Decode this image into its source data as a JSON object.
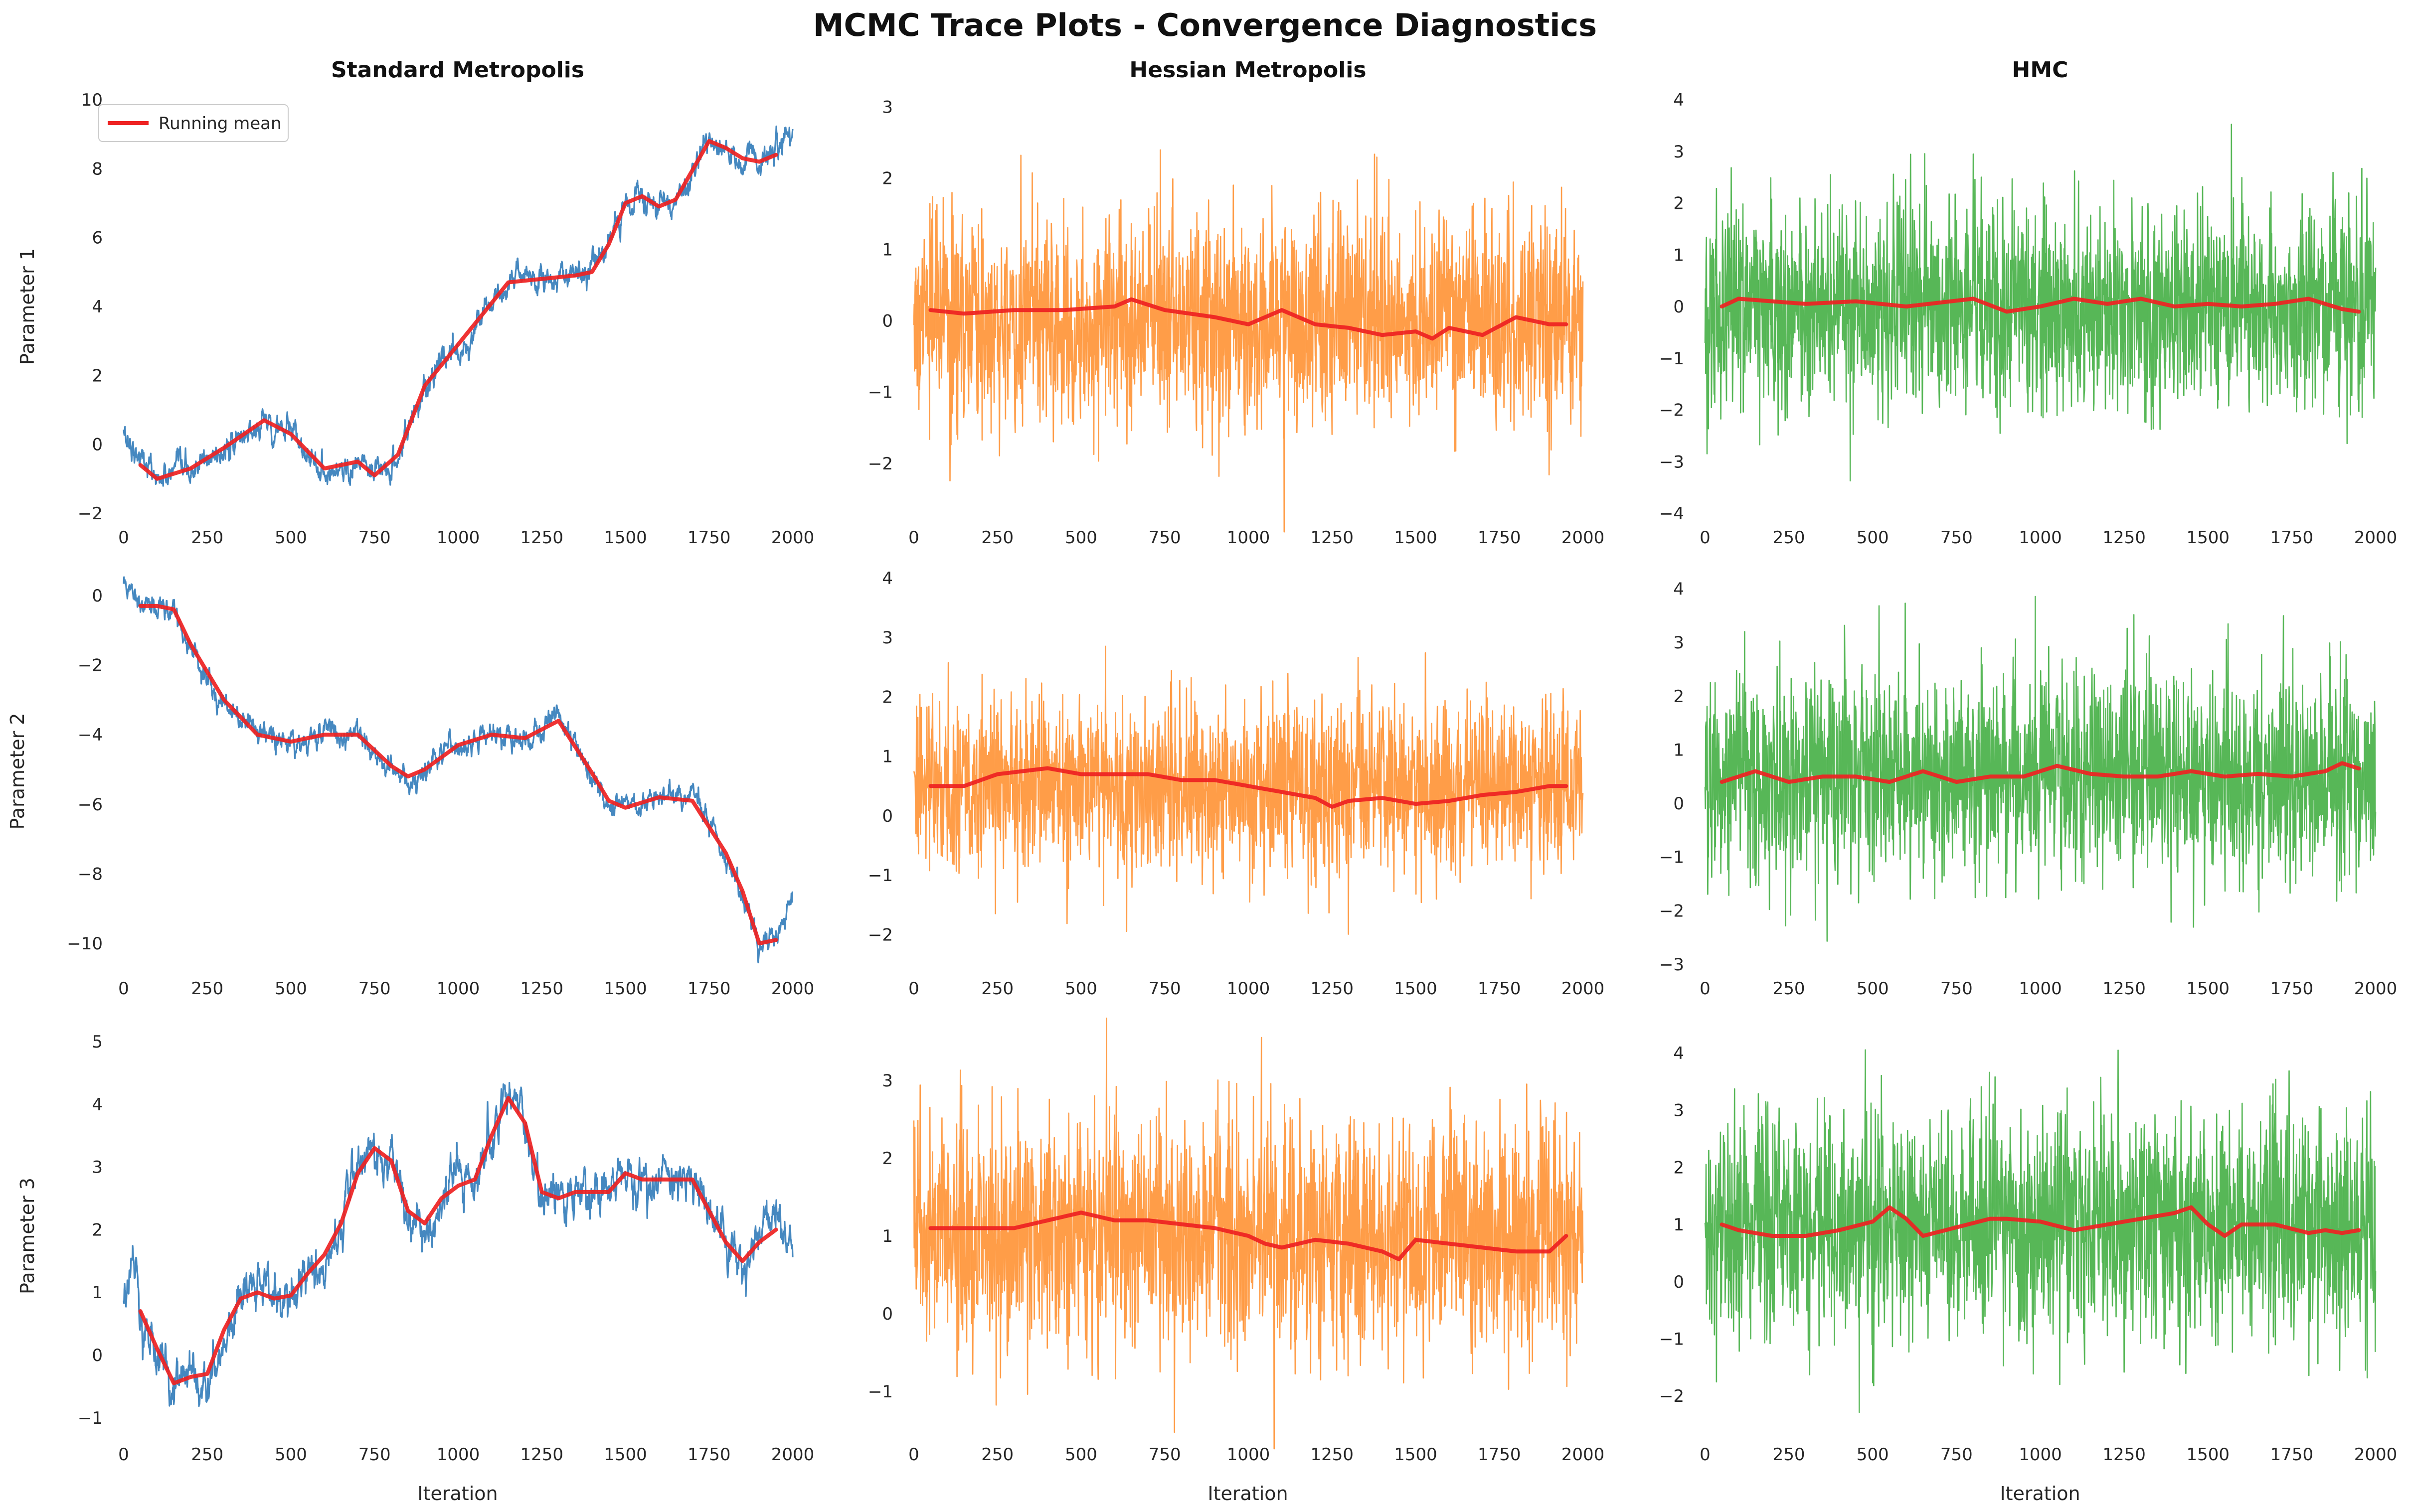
{
  "title": "MCMC Trace Plots - Convergence Diagnostics",
  "column_titles": [
    "Standard Metropolis",
    "Hessian Metropolis",
    "HMC"
  ],
  "row_labels": [
    "Parameter 1",
    "Parameter 2",
    "Parameter 3"
  ],
  "xlabel": "Iteration",
  "legend_label": "Running mean",
  "colors": {
    "standard": "#3b82bd",
    "hessian": "#ff8c28",
    "hmc": "#3aaa3a",
    "running_mean": "#ee2222",
    "text": "#262626"
  },
  "chart_data": [
    {
      "type": "line",
      "row": 1,
      "col": 1,
      "method": "Standard Metropolis",
      "ylabel": "Parameter 1",
      "xlim": [
        0,
        2000
      ],
      "ylim": [
        -2,
        10
      ],
      "xticks": [
        0,
        250,
        500,
        750,
        1000,
        1250,
        1500,
        1750,
        2000
      ],
      "yticks": [
        -2,
        0,
        2,
        4,
        6,
        8,
        10
      ],
      "legend": "top-left",
      "trace": {
        "kind": "walk",
        "noise": 0.22,
        "x": [
          0,
          100,
          200,
          300,
          420,
          500,
          600,
          700,
          750,
          820,
          900,
          1000,
          1100,
          1150,
          1250,
          1350,
          1400,
          1450,
          1500,
          1550,
          1600,
          1650,
          1750,
          1800,
          1850,
          1900,
          1950,
          2000
        ],
        "y": [
          0.3,
          -1.0,
          -0.8,
          -0.2,
          0.7,
          0.3,
          -0.8,
          -0.5,
          -1.0,
          -0.4,
          1.8,
          2.8,
          4.0,
          4.7,
          4.8,
          4.9,
          5.0,
          5.8,
          7.0,
          7.2,
          6.8,
          7.0,
          8.8,
          8.5,
          8.2,
          8.2,
          8.6,
          9.2
        ]
      },
      "running_mean": {
        "x": [
          50,
          100,
          200,
          300,
          420,
          500,
          600,
          700,
          750,
          820,
          900,
          1000,
          1100,
          1150,
          1250,
          1350,
          1400,
          1450,
          1500,
          1550,
          1600,
          1650,
          1750,
          1800,
          1850,
          1900,
          1950
        ],
        "y": [
          -0.6,
          -1.0,
          -0.7,
          -0.1,
          0.7,
          0.3,
          -0.7,
          -0.5,
          -0.9,
          -0.3,
          1.7,
          2.9,
          4.1,
          4.7,
          4.8,
          4.9,
          5.0,
          5.8,
          7.0,
          7.2,
          6.9,
          7.1,
          8.8,
          8.6,
          8.3,
          8.2,
          8.4
        ]
      }
    },
    {
      "type": "line",
      "row": 1,
      "col": 2,
      "method": "Hessian Metropolis",
      "xlim": [
        0,
        2000
      ],
      "ylim": [
        -2.7,
        3.1
      ],
      "xticks": [
        0,
        250,
        500,
        750,
        1000,
        1250,
        1500,
        1750,
        2000
      ],
      "yticks": [
        -2,
        -1,
        0,
        1,
        2,
        3
      ],
      "trace": {
        "kind": "noise",
        "mean": 0,
        "sd": 0.72,
        "x": [
          0,
          2000
        ],
        "y": [
          0,
          0
        ]
      },
      "running_mean": {
        "x": [
          50,
          150,
          300,
          450,
          600,
          650,
          750,
          900,
          1000,
          1100,
          1200,
          1300,
          1400,
          1500,
          1550,
          1600,
          1700,
          1800,
          1900,
          1950
        ],
        "y": [
          0.15,
          0.1,
          0.15,
          0.15,
          0.2,
          0.3,
          0.15,
          0.05,
          -0.05,
          0.15,
          -0.05,
          -0.1,
          -0.2,
          -0.15,
          -0.25,
          -0.1,
          -0.2,
          0.05,
          -0.05,
          -0.05
        ]
      }
    },
    {
      "type": "line",
      "row": 1,
      "col": 3,
      "method": "HMC",
      "xlim": [
        0,
        2000
      ],
      "ylim": [
        -4,
        4
      ],
      "xticks": [
        0,
        250,
        500,
        750,
        1000,
        1250,
        1500,
        1750,
        2000
      ],
      "yticks": [
        -4,
        -3,
        -2,
        -1,
        0,
        1,
        2,
        3,
        4
      ],
      "trace": {
        "kind": "noise",
        "mean": 0,
        "sd": 1.0,
        "x": [
          0,
          2000
        ],
        "y": [
          0,
          0
        ]
      },
      "running_mean": {
        "x": [
          50,
          100,
          200,
          300,
          450,
          600,
          800,
          900,
          1000,
          1100,
          1200,
          1300,
          1400,
          1500,
          1600,
          1700,
          1800,
          1900,
          1950
        ],
        "y": [
          0.0,
          0.15,
          0.1,
          0.05,
          0.1,
          0.0,
          0.15,
          -0.1,
          0.0,
          0.15,
          0.05,
          0.15,
          0.0,
          0.05,
          0.0,
          0.05,
          0.15,
          -0.05,
          -0.1
        ]
      }
    },
    {
      "type": "line",
      "row": 2,
      "col": 1,
      "method": "Standard Metropolis",
      "ylabel": "Parameter 2",
      "xlim": [
        0,
        2000
      ],
      "ylim": [
        -10.6,
        0.5
      ],
      "xticks": [
        0,
        250,
        500,
        750,
        1000,
        1250,
        1500,
        1750,
        2000
      ],
      "yticks": [
        -10,
        -8,
        -6,
        -4,
        -2,
        0
      ],
      "trace": {
        "kind": "walk",
        "noise": 0.2,
        "x": [
          0,
          100,
          150,
          200,
          300,
          400,
          500,
          600,
          700,
          800,
          850,
          900,
          1000,
          1100,
          1200,
          1300,
          1400,
          1450,
          1500,
          1600,
          1700,
          1800,
          1850,
          1900,
          1950,
          2000
        ],
        "y": [
          0.3,
          -0.3,
          -0.4,
          -1.5,
          -3.0,
          -4.0,
          -4.2,
          -4.0,
          -4.0,
          -5.0,
          -5.3,
          -5.0,
          -4.2,
          -4.0,
          -4.2,
          -3.5,
          -5.2,
          -6.0,
          -6.1,
          -5.8,
          -5.8,
          -7.5,
          -8.5,
          -10.0,
          -9.8,
          -8.8
        ]
      },
      "running_mean": {
        "x": [
          50,
          100,
          150,
          200,
          300,
          400,
          500,
          600,
          700,
          800,
          850,
          900,
          1000,
          1100,
          1200,
          1300,
          1400,
          1450,
          1500,
          1600,
          1700,
          1800,
          1850,
          1900,
          1950
        ],
        "y": [
          -0.3,
          -0.3,
          -0.4,
          -1.4,
          -3.0,
          -4.0,
          -4.2,
          -4.0,
          -4.0,
          -4.9,
          -5.2,
          -5.0,
          -4.3,
          -4.0,
          -4.1,
          -3.6,
          -5.1,
          -5.9,
          -6.1,
          -5.8,
          -5.9,
          -7.4,
          -8.5,
          -10.0,
          -9.9
        ]
      }
    },
    {
      "type": "line",
      "row": 2,
      "col": 2,
      "method": "Hessian Metropolis",
      "xlim": [
        0,
        2000
      ],
      "ylim": [
        -2.5,
        4
      ],
      "xticks": [
        0,
        250,
        500,
        750,
        1000,
        1250,
        1500,
        1750,
        2000
      ],
      "yticks": [
        -2,
        -1,
        0,
        1,
        2,
        3,
        4
      ],
      "trace": {
        "kind": "noise",
        "mean": 0.5,
        "sd": 0.72,
        "x": [
          0,
          2000
        ],
        "y": [
          0.5,
          0.5
        ]
      },
      "running_mean": {
        "x": [
          50,
          150,
          250,
          400,
          500,
          600,
          700,
          800,
          900,
          1000,
          1100,
          1200,
          1250,
          1300,
          1400,
          1500,
          1600,
          1700,
          1800,
          1900,
          1950
        ],
        "y": [
          0.5,
          0.5,
          0.7,
          0.8,
          0.7,
          0.7,
          0.7,
          0.6,
          0.6,
          0.5,
          0.4,
          0.3,
          0.15,
          0.25,
          0.3,
          0.2,
          0.25,
          0.35,
          0.4,
          0.5,
          0.5
        ]
      }
    },
    {
      "type": "line",
      "row": 2,
      "col": 3,
      "method": "HMC",
      "xlim": [
        0,
        2000
      ],
      "ylim": [
        -3,
        4.2
      ],
      "xticks": [
        0,
        250,
        500,
        750,
        1000,
        1250,
        1500,
        1750,
        2000
      ],
      "yticks": [
        -3,
        -2,
        -1,
        0,
        1,
        2,
        3,
        4
      ],
      "trace": {
        "kind": "noise",
        "mean": 0.5,
        "sd": 0.95,
        "x": [
          0,
          2000
        ],
        "y": [
          0.5,
          0.5
        ]
      },
      "running_mean": {
        "x": [
          50,
          100,
          150,
          250,
          350,
          450,
          550,
          650,
          750,
          850,
          950,
          1050,
          1150,
          1250,
          1350,
          1450,
          1550,
          1650,
          1750,
          1850,
          1900,
          1950
        ],
        "y": [
          0.4,
          0.5,
          0.6,
          0.4,
          0.5,
          0.5,
          0.4,
          0.6,
          0.4,
          0.5,
          0.5,
          0.7,
          0.55,
          0.5,
          0.5,
          0.6,
          0.5,
          0.55,
          0.5,
          0.6,
          0.75,
          0.65
        ]
      }
    },
    {
      "type": "line",
      "row": 3,
      "col": 1,
      "method": "Standard Metropolis",
      "ylabel": "Parameter 3",
      "xlim": [
        0,
        2000
      ],
      "ylim": [
        -1.2,
        5
      ],
      "xticks": [
        0,
        250,
        500,
        750,
        1000,
        1250,
        1500,
        1750,
        2000
      ],
      "yticks": [
        -1,
        0,
        1,
        2,
        3,
        4,
        5
      ],
      "trace": {
        "kind": "walk",
        "noise": 0.2,
        "x": [
          0,
          30,
          60,
          100,
          150,
          200,
          250,
          300,
          350,
          400,
          450,
          500,
          550,
          600,
          650,
          700,
          750,
          800,
          850,
          900,
          950,
          1000,
          1050,
          1100,
          1150,
          1200,
          1250,
          1300,
          1350,
          1400,
          1450,
          1500,
          1550,
          1600,
          1650,
          1700,
          1750,
          1800,
          1850,
          1900,
          1950,
          2000
        ],
        "y": [
          1.0,
          1.5,
          0.6,
          0.0,
          -0.5,
          -0.3,
          -0.6,
          0.3,
          1.0,
          1.1,
          0.9,
          0.9,
          1.3,
          1.5,
          2.0,
          3.0,
          3.2,
          3.2,
          2.2,
          2.0,
          2.5,
          2.8,
          2.8,
          3.5,
          4.2,
          3.8,
          2.5,
          2.6,
          2.7,
          2.6,
          2.6,
          2.9,
          2.7,
          2.9,
          2.8,
          2.8,
          2.3,
          1.8,
          1.4,
          1.9,
          2.1,
          1.7
        ]
      },
      "running_mean": {
        "x": [
          50,
          100,
          150,
          200,
          250,
          300,
          350,
          400,
          450,
          500,
          550,
          600,
          650,
          700,
          750,
          800,
          850,
          900,
          950,
          1000,
          1050,
          1100,
          1150,
          1200,
          1250,
          1300,
          1350,
          1400,
          1450,
          1500,
          1550,
          1600,
          1650,
          1700,
          1750,
          1800,
          1850,
          1900,
          1950
        ],
        "y": [
          0.7,
          0.1,
          -0.45,
          -0.35,
          -0.3,
          0.4,
          0.9,
          1.0,
          0.9,
          0.95,
          1.3,
          1.6,
          2.1,
          2.9,
          3.3,
          3.1,
          2.3,
          2.1,
          2.5,
          2.7,
          2.8,
          3.5,
          4.1,
          3.7,
          2.6,
          2.5,
          2.6,
          2.6,
          2.6,
          2.9,
          2.8,
          2.8,
          2.8,
          2.8,
          2.3,
          1.8,
          1.5,
          1.8,
          2.0
        ]
      }
    },
    {
      "type": "line",
      "row": 3,
      "col": 2,
      "method": "Hessian Metropolis",
      "xlim": [
        0,
        2000
      ],
      "ylim": [
        -1.5,
        3.5
      ],
      "xticks": [
        0,
        250,
        500,
        750,
        1000,
        1250,
        1500,
        1750,
        2000
      ],
      "yticks": [
        -1,
        0,
        1,
        2,
        3
      ],
      "trace": {
        "kind": "noise",
        "mean": 1.0,
        "sd": 0.72,
        "x": [
          0,
          2000
        ],
        "y": [
          1.0,
          1.0
        ]
      },
      "running_mean": {
        "x": [
          50,
          150,
          300,
          400,
          500,
          600,
          700,
          800,
          900,
          1000,
          1050,
          1100,
          1200,
          1300,
          1400,
          1450,
          1500,
          1600,
          1700,
          1800,
          1900,
          1950
        ],
        "y": [
          1.1,
          1.1,
          1.1,
          1.2,
          1.3,
          1.2,
          1.2,
          1.15,
          1.1,
          1.0,
          0.9,
          0.85,
          0.95,
          0.9,
          0.8,
          0.7,
          0.95,
          0.9,
          0.85,
          0.8,
          0.8,
          1.0
        ]
      }
    },
    {
      "type": "line",
      "row": 3,
      "col": 3,
      "method": "HMC",
      "xlim": [
        0,
        2000
      ],
      "ylim": [
        -2.6,
        4.2
      ],
      "xticks": [
        0,
        250,
        500,
        750,
        1000,
        1250,
        1500,
        1750,
        2000
      ],
      "yticks": [
        -2,
        -1,
        0,
        1,
        2,
        3,
        4
      ],
      "trace": {
        "kind": "noise",
        "mean": 1.0,
        "sd": 0.95,
        "x": [
          0,
          2000
        ],
        "y": [
          1.0,
          1.0
        ]
      },
      "running_mean": {
        "x": [
          50,
          100,
          200,
          300,
          400,
          500,
          550,
          600,
          650,
          750,
          850,
          900,
          1000,
          1100,
          1200,
          1300,
          1400,
          1450,
          1500,
          1550,
          1600,
          1700,
          1800,
          1850,
          1900,
          1950
        ],
        "y": [
          1.0,
          0.9,
          0.8,
          0.8,
          0.9,
          1.05,
          1.3,
          1.1,
          0.8,
          0.95,
          1.1,
          1.1,
          1.05,
          0.9,
          1.0,
          1.1,
          1.2,
          1.3,
          1.0,
          0.8,
          1.0,
          1.0,
          0.85,
          0.9,
          0.85,
          0.9
        ]
      }
    }
  ]
}
